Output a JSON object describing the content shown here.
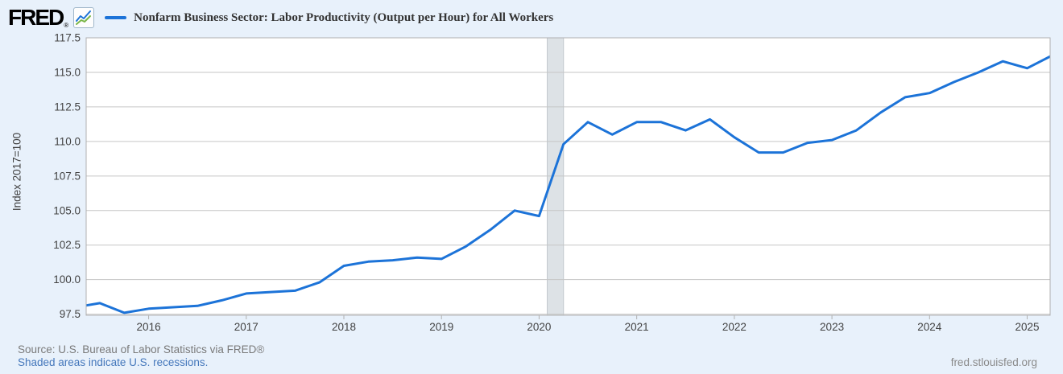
{
  "header": {
    "logo_text": "FRED",
    "registered_mark": "®",
    "series_title": "Nonfarm Business Sector: Labor Productivity (Output per Hour) for All Workers"
  },
  "footer": {
    "source": "Source: U.S. Bureau of Labor Statistics via FRED®",
    "recession_note": "Shaded areas indicate U.S. recessions.",
    "site": "fred.stlouisfed.org"
  },
  "colors": {
    "line_blue": "#1c73d8",
    "logo_icon_green": "#7ab648",
    "page_background": "#e8f1fb",
    "plot_background": "#ffffff",
    "gridline": "#c6c6c6",
    "plot_border": "#b0b0b0",
    "recession_band_fill": "#dde2e6",
    "recession_band_edge": "#c3c9ce",
    "tick_text": "#424242"
  },
  "chart_data": {
    "type": "line",
    "title": "Nonfarm Business Sector: Labor Productivity (Output per Hour) for All Workers",
    "xlabel": "",
    "ylabel": "Index 2017=100",
    "frequency": "quarterly",
    "x_range_years": [
      2015.36,
      2025.235
    ],
    "ylim": [
      97.42,
      117.5
    ],
    "y_ticks": [
      117.5,
      115.0,
      112.5,
      110.0,
      107.5,
      105.0,
      102.5,
      100.0,
      97.5
    ],
    "y_tick_labels": [
      "117.5",
      "115.0",
      "112.5",
      "110.0",
      "107.5",
      "105.0",
      "102.5",
      "100.0",
      "97.5"
    ],
    "x_ticks": [
      2016,
      2017,
      2018,
      2019,
      2020,
      2021,
      2022,
      2023,
      2024,
      2025
    ],
    "x_tick_labels": [
      "2016",
      "2017",
      "2018",
      "2019",
      "2020",
      "2021",
      "2022",
      "2023",
      "2024",
      "2025"
    ],
    "grid": "horizontal-only",
    "legend_position": "top-left",
    "recession_bands": [
      [
        2020.083,
        2020.25
      ]
    ],
    "series": [
      {
        "name": "Nonfarm Business Sector: Labor Productivity (Output per Hour) for All Workers",
        "points": [
          [
            2015.25,
            98.0
          ],
          [
            2015.5,
            98.3
          ],
          [
            2015.75,
            97.6
          ],
          [
            2016.0,
            97.9
          ],
          [
            2016.25,
            98.0
          ],
          [
            2016.5,
            98.1
          ],
          [
            2016.75,
            98.5
          ],
          [
            2017.0,
            99.0
          ],
          [
            2017.25,
            99.1
          ],
          [
            2017.5,
            99.2
          ],
          [
            2017.75,
            99.8
          ],
          [
            2018.0,
            101.0
          ],
          [
            2018.25,
            101.3
          ],
          [
            2018.5,
            101.4
          ],
          [
            2018.75,
            101.6
          ],
          [
            2019.0,
            101.5
          ],
          [
            2019.25,
            102.4
          ],
          [
            2019.5,
            103.6
          ],
          [
            2019.75,
            105.0
          ],
          [
            2020.0,
            104.6
          ],
          [
            2020.25,
            109.8
          ],
          [
            2020.5,
            111.4
          ],
          [
            2020.75,
            110.5
          ],
          [
            2021.0,
            111.4
          ],
          [
            2021.25,
            111.4
          ],
          [
            2021.5,
            110.8
          ],
          [
            2021.75,
            111.6
          ],
          [
            2022.0,
            110.3
          ],
          [
            2022.25,
            109.2
          ],
          [
            2022.5,
            109.2
          ],
          [
            2022.75,
            109.9
          ],
          [
            2023.0,
            110.1
          ],
          [
            2023.25,
            110.8
          ],
          [
            2023.5,
            112.1
          ],
          [
            2023.75,
            113.2
          ],
          [
            2024.0,
            113.5
          ],
          [
            2024.25,
            114.3
          ],
          [
            2024.5,
            115.0
          ],
          [
            2024.75,
            115.8
          ],
          [
            2025.0,
            115.3
          ],
          [
            2025.25,
            116.2
          ]
        ]
      }
    ]
  }
}
